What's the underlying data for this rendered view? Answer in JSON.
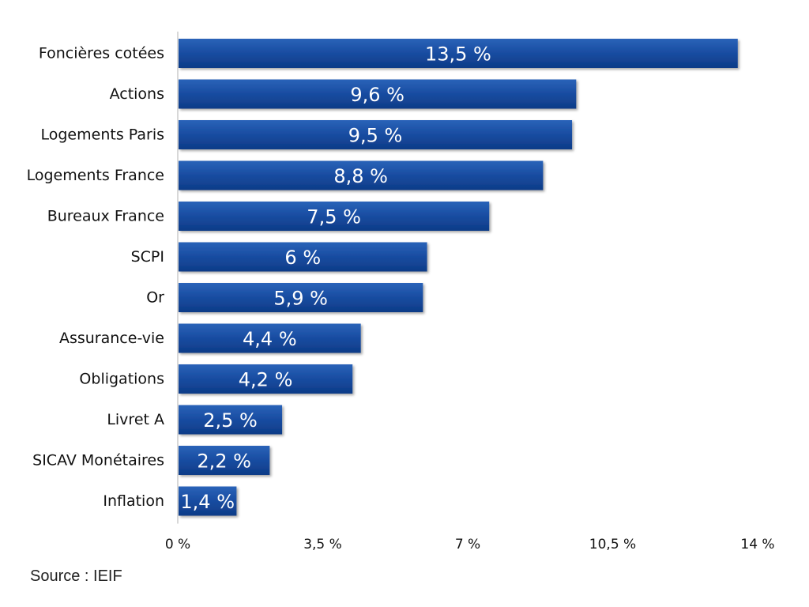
{
  "chart_data": {
    "type": "bar",
    "orientation": "horizontal",
    "categories": [
      "Foncières cotées",
      "Actions",
      "Logements Paris",
      "Logements France",
      "Bureaux France",
      "SCPI",
      "Or",
      "Assurance-vie",
      "Obligations",
      "Livret A",
      "SICAV Monétaires",
      "Inflation"
    ],
    "values": [
      13.5,
      9.6,
      9.5,
      8.8,
      7.5,
      6,
      5.9,
      4.4,
      4.2,
      2.5,
      2.2,
      1.4
    ],
    "value_labels": [
      "13,5 %",
      "9,6 %",
      "9,5 %",
      "8,8 %",
      "7,5 %",
      "6 %",
      "5,9 %",
      "4,4 %",
      "4,2 %",
      "2,5 %",
      "2,2 %",
      "1,4 %"
    ],
    "xlim": [
      0,
      14
    ],
    "ticks": [
      0,
      3.5,
      7,
      10.5,
      14
    ],
    "tick_labels": [
      "0 %",
      "3,5 %",
      "7 %",
      "10,5 %",
      "14 %"
    ],
    "title": "",
    "xlabel": "",
    "ylabel": "",
    "grid": false,
    "bar_color_top": "#2a63b8",
    "bar_color_bottom": "#0d3b87"
  },
  "source": "Source : IEIF"
}
